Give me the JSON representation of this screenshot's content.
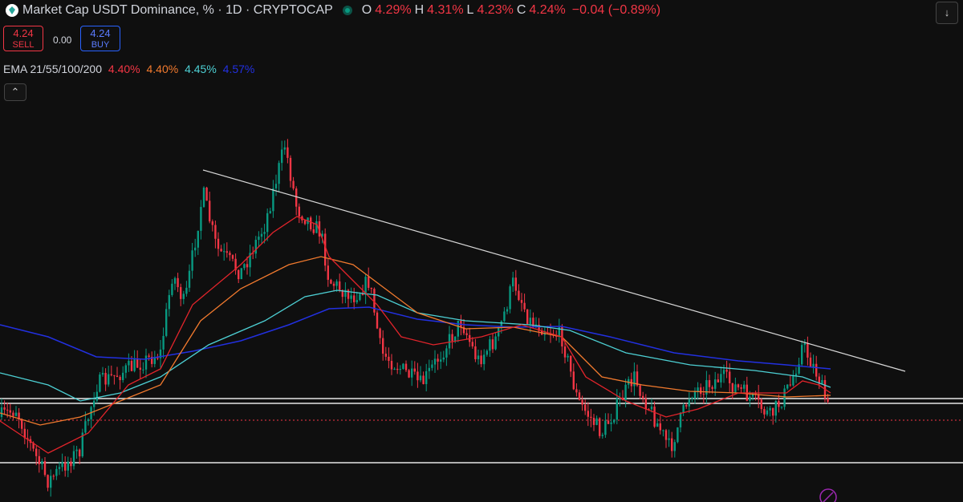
{
  "header": {
    "symbol": "Market Cap USDT Dominance, % · 1D · CRYPTOCAP",
    "ohlc": [
      {
        "label": "O",
        "value": "4.29%"
      },
      {
        "label": "H",
        "value": "4.31%"
      },
      {
        "label": "L",
        "value": "4.23%"
      },
      {
        "label": "C",
        "value": "4.24%"
      }
    ],
    "change": "−0.04 (−0.89%)"
  },
  "trade": {
    "sell_price": "4.24",
    "sell_label": "SELL",
    "spread": "0.00",
    "buy_price": "4.24",
    "buy_label": "BUY"
  },
  "indicator": {
    "name": "EMA 21/55/100/200",
    "values": [
      "4.40%",
      "4.40%",
      "4.45%",
      "4.57%"
    ]
  }
}
